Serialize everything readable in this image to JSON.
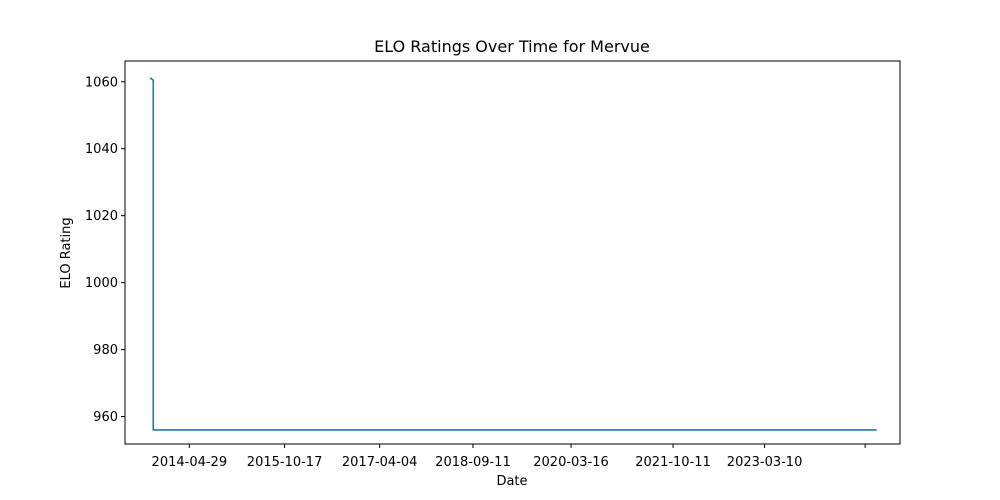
{
  "chart_data": {
    "type": "line",
    "title": "ELO Ratings Over Time for Mervue",
    "xlabel": "Date",
    "ylabel": "ELO Rating",
    "xlim": [
      "2013-05-02",
      "2025-04-10"
    ],
    "ylim": [
      951.8,
      1066.2
    ],
    "x_ticks": [
      {
        "date": "2014-04-29",
        "label": "2014-04-29"
      },
      {
        "date": "2015-10-17",
        "label": "2015-10-17"
      },
      {
        "date": "2017-04-04",
        "label": "2017-04-04"
      },
      {
        "date": "2018-09-11",
        "label": "2018-09-11"
      },
      {
        "date": "2020-03-16",
        "label": "2020-03-16"
      },
      {
        "date": "2021-10-11",
        "label": "2021-10-11"
      },
      {
        "date": "2023-03-10",
        "label": "2023-03-10"
      },
      {
        "date": "2024-09-26",
        "label": ""
      }
    ],
    "y_ticks": [
      960,
      980,
      1000,
      1020,
      1040,
      1060
    ],
    "grid": false,
    "series": [
      {
        "name": "Mervue",
        "color": "#1f77b4",
        "points": [
          {
            "date": "2013-09-24",
            "value": 1061
          },
          {
            "date": "2013-10-08",
            "value": 1060.5
          },
          {
            "date": "2013-10-08",
            "value": 956
          },
          {
            "date": "2024-11-25",
            "value": 956
          }
        ]
      }
    ]
  }
}
